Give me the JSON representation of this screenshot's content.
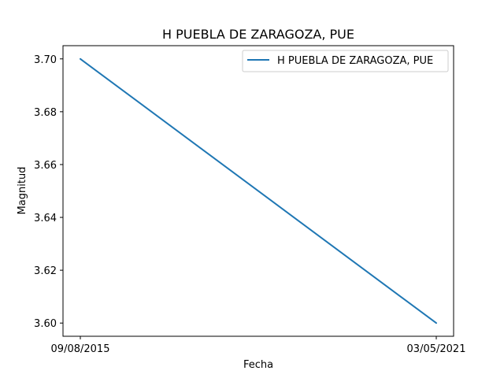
{
  "chart_data": {
    "type": "line",
    "title": "H PUEBLA DE ZARAGOZA, PUE",
    "xlabel": "Fecha",
    "ylabel": "Magnitud",
    "categories": [
      "09/08/2015",
      "03/05/2021"
    ],
    "series": [
      {
        "name": "H PUEBLA DE ZARAGOZA, PUE",
        "values": [
          3.7,
          3.6
        ],
        "color": "#1f77b4"
      }
    ],
    "ylim": [
      3.595,
      3.705
    ],
    "yticks": [
      "3.60",
      "3.62",
      "3.64",
      "3.66",
      "3.68",
      "3.70"
    ],
    "grid": false,
    "legend_position": "upper right"
  }
}
